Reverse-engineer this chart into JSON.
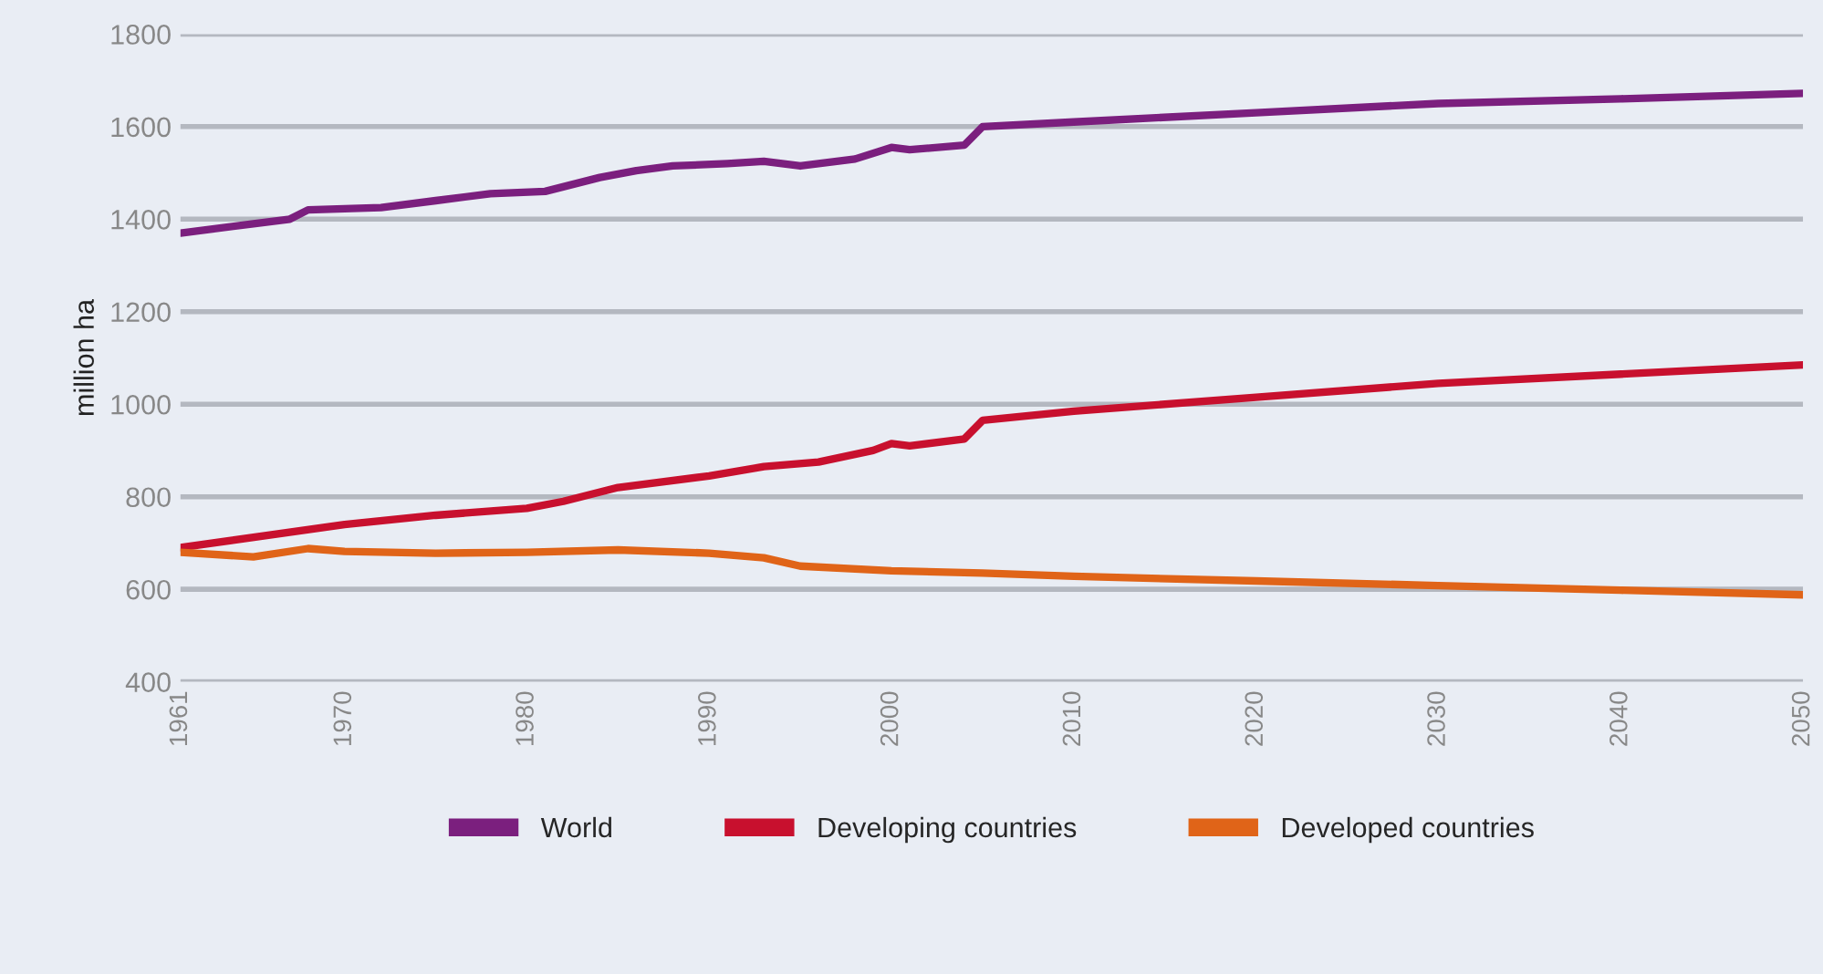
{
  "chart_data": {
    "type": "line",
    "ylabel": "million ha",
    "xlim": [
      1961,
      2050
    ],
    "xticks": [
      1961,
      1970,
      1980,
      1990,
      2000,
      2010,
      2020,
      2030,
      2040,
      2050
    ],
    "ylim": [
      400,
      1800
    ],
    "yticks": [
      400,
      600,
      800,
      1000,
      1200,
      1400,
      1600,
      1800
    ],
    "grid": "y",
    "legend": "bottom",
    "line_style": "solid",
    "series": [
      {
        "name": "World",
        "color": "#7b1f7e",
        "x": [
          1961,
          1965,
          1967,
          1968,
          1972,
          1975,
          1978,
          1981,
          1984,
          1986,
          1988,
          1991,
          1993,
          1995,
          1998,
          2000,
          2001,
          2004,
          2005,
          2010,
          2020,
          2030,
          2040,
          2050
        ],
        "values": [
          1370,
          1390,
          1400,
          1420,
          1425,
          1440,
          1455,
          1460,
          1490,
          1505,
          1515,
          1520,
          1525,
          1515,
          1530,
          1555,
          1550,
          1560,
          1600,
          1610,
          1630,
          1650,
          1660,
          1672
        ]
      },
      {
        "name": "Developing countries",
        "color": "#c8102e",
        "x": [
          1961,
          1970,
          1975,
          1980,
          1982,
          1985,
          1990,
          1993,
          1996,
          1999,
          2000,
          2001,
          2004,
          2005,
          2010,
          2020,
          2030,
          2040,
          2050
        ],
        "values": [
          690,
          740,
          760,
          775,
          790,
          820,
          845,
          865,
          875,
          900,
          915,
          910,
          925,
          965,
          985,
          1015,
          1045,
          1065,
          1085
        ]
      },
      {
        "name": "Developed countries",
        "color": "#e06418",
        "x": [
          1961,
          1965,
          1968,
          1970,
          1975,
          1980,
          1985,
          1990,
          1993,
          1995,
          2000,
          2005,
          2010,
          2020,
          2030,
          2040,
          2050
        ],
        "values": [
          680,
          670,
          688,
          682,
          678,
          680,
          685,
          678,
          668,
          650,
          640,
          635,
          628,
          618,
          608,
          598,
          588
        ]
      }
    ]
  }
}
